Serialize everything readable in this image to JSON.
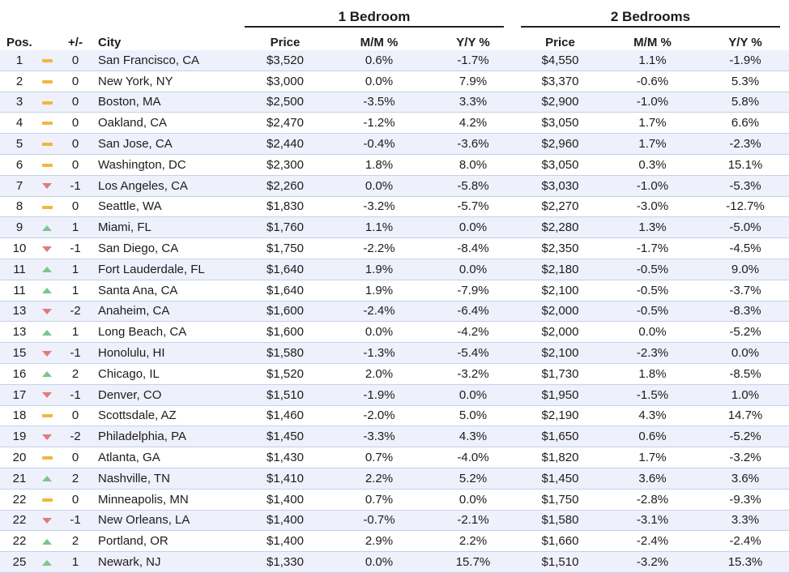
{
  "groups": {
    "one_bedroom": "1 Bedroom",
    "two_bedrooms": "2 Bedrooms"
  },
  "headers": {
    "pos": "Pos.",
    "change": "+/-",
    "city": "City",
    "price": "Price",
    "mm": "M/M %",
    "yy": "Y/Y %"
  },
  "indicator_colors": {
    "up": "#7dc48c",
    "down": "#e27a7a",
    "same": "#f0b73d"
  },
  "rows": [
    {
      "pos": "1",
      "dir": "same",
      "change": "0",
      "city": "San Francisco, CA",
      "p1": "$3,520",
      "mm1": "0.6%",
      "yy1": "-1.7%",
      "p2": "$4,550",
      "mm2": "1.1%",
      "yy2": "-1.9%"
    },
    {
      "pos": "2",
      "dir": "same",
      "change": "0",
      "city": "New York, NY",
      "p1": "$3,000",
      "mm1": "0.0%",
      "yy1": "7.9%",
      "p2": "$3,370",
      "mm2": "-0.6%",
      "yy2": "5.3%"
    },
    {
      "pos": "3",
      "dir": "same",
      "change": "0",
      "city": "Boston, MA",
      "p1": "$2,500",
      "mm1": "-3.5%",
      "yy1": "3.3%",
      "p2": "$2,900",
      "mm2": "-1.0%",
      "yy2": "5.8%"
    },
    {
      "pos": "4",
      "dir": "same",
      "change": "0",
      "city": "Oakland, CA",
      "p1": "$2,470",
      "mm1": "-1.2%",
      "yy1": "4.2%",
      "p2": "$3,050",
      "mm2": "1.7%",
      "yy2": "6.6%"
    },
    {
      "pos": "5",
      "dir": "same",
      "change": "0",
      "city": "San Jose, CA",
      "p1": "$2,440",
      "mm1": "-0.4%",
      "yy1": "-3.6%",
      "p2": "$2,960",
      "mm2": "1.7%",
      "yy2": "-2.3%"
    },
    {
      "pos": "6",
      "dir": "same",
      "change": "0",
      "city": "Washington, DC",
      "p1": "$2,300",
      "mm1": "1.8%",
      "yy1": "8.0%",
      "p2": "$3,050",
      "mm2": "0.3%",
      "yy2": "15.1%"
    },
    {
      "pos": "7",
      "dir": "down",
      "change": "-1",
      "city": "Los Angeles, CA",
      "p1": "$2,260",
      "mm1": "0.0%",
      "yy1": "-5.8%",
      "p2": "$3,030",
      "mm2": "-1.0%",
      "yy2": "-5.3%"
    },
    {
      "pos": "8",
      "dir": "same",
      "change": "0",
      "city": "Seattle, WA",
      "p1": "$1,830",
      "mm1": "-3.2%",
      "yy1": "-5.7%",
      "p2": "$2,270",
      "mm2": "-3.0%",
      "yy2": "-12.7%"
    },
    {
      "pos": "9",
      "dir": "up",
      "change": "1",
      "city": "Miami, FL",
      "p1": "$1,760",
      "mm1": "1.1%",
      "yy1": "0.0%",
      "p2": "$2,280",
      "mm2": "1.3%",
      "yy2": "-5.0%"
    },
    {
      "pos": "10",
      "dir": "down",
      "change": "-1",
      "city": "San Diego, CA",
      "p1": "$1,750",
      "mm1": "-2.2%",
      "yy1": "-8.4%",
      "p2": "$2,350",
      "mm2": "-1.7%",
      "yy2": "-4.5%"
    },
    {
      "pos": "11",
      "dir": "up",
      "change": "1",
      "city": "Fort Lauderdale, FL",
      "p1": "$1,640",
      "mm1": "1.9%",
      "yy1": "0.0%",
      "p2": "$2,180",
      "mm2": "-0.5%",
      "yy2": "9.0%"
    },
    {
      "pos": "11",
      "dir": "up",
      "change": "1",
      "city": "Santa Ana, CA",
      "p1": "$1,640",
      "mm1": "1.9%",
      "yy1": "-7.9%",
      "p2": "$2,100",
      "mm2": "-0.5%",
      "yy2": "-3.7%"
    },
    {
      "pos": "13",
      "dir": "down",
      "change": "-2",
      "city": "Anaheim, CA",
      "p1": "$1,600",
      "mm1": "-2.4%",
      "yy1": "-6.4%",
      "p2": "$2,000",
      "mm2": "-0.5%",
      "yy2": "-8.3%"
    },
    {
      "pos": "13",
      "dir": "up",
      "change": "1",
      "city": "Long Beach, CA",
      "p1": "$1,600",
      "mm1": "0.0%",
      "yy1": "-4.2%",
      "p2": "$2,000",
      "mm2": "0.0%",
      "yy2": "-5.2%"
    },
    {
      "pos": "15",
      "dir": "down",
      "change": "-1",
      "city": "Honolulu, HI",
      "p1": "$1,580",
      "mm1": "-1.3%",
      "yy1": "-5.4%",
      "p2": "$2,100",
      "mm2": "-2.3%",
      "yy2": "0.0%"
    },
    {
      "pos": "16",
      "dir": "up",
      "change": "2",
      "city": "Chicago, IL",
      "p1": "$1,520",
      "mm1": "2.0%",
      "yy1": "-3.2%",
      "p2": "$1,730",
      "mm2": "1.8%",
      "yy2": "-8.5%"
    },
    {
      "pos": "17",
      "dir": "down",
      "change": "-1",
      "city": "Denver, CO",
      "p1": "$1,510",
      "mm1": "-1.9%",
      "yy1": "0.0%",
      "p2": "$1,950",
      "mm2": "-1.5%",
      "yy2": "1.0%"
    },
    {
      "pos": "18",
      "dir": "same",
      "change": "0",
      "city": "Scottsdale, AZ",
      "p1": "$1,460",
      "mm1": "-2.0%",
      "yy1": "5.0%",
      "p2": "$2,190",
      "mm2": "4.3%",
      "yy2": "14.7%"
    },
    {
      "pos": "19",
      "dir": "down",
      "change": "-2",
      "city": "Philadelphia, PA",
      "p1": "$1,450",
      "mm1": "-3.3%",
      "yy1": "4.3%",
      "p2": "$1,650",
      "mm2": "0.6%",
      "yy2": "-5.2%"
    },
    {
      "pos": "20",
      "dir": "same",
      "change": "0",
      "city": "Atlanta, GA",
      "p1": "$1,430",
      "mm1": "0.7%",
      "yy1": "-4.0%",
      "p2": "$1,820",
      "mm2": "1.7%",
      "yy2": "-3.2%"
    },
    {
      "pos": "21",
      "dir": "up",
      "change": "2",
      "city": "Nashville, TN",
      "p1": "$1,410",
      "mm1": "2.2%",
      "yy1": "5.2%",
      "p2": "$1,450",
      "mm2": "3.6%",
      "yy2": "3.6%"
    },
    {
      "pos": "22",
      "dir": "same",
      "change": "0",
      "city": "Minneapolis, MN",
      "p1": "$1,400",
      "mm1": "0.7%",
      "yy1": "0.0%",
      "p2": "$1,750",
      "mm2": "-2.8%",
      "yy2": "-9.3%"
    },
    {
      "pos": "22",
      "dir": "down",
      "change": "-1",
      "city": "New Orleans, LA",
      "p1": "$1,400",
      "mm1": "-0.7%",
      "yy1": "-2.1%",
      "p2": "$1,580",
      "mm2": "-3.1%",
      "yy2": "3.3%"
    },
    {
      "pos": "22",
      "dir": "up",
      "change": "2",
      "city": "Portland, OR",
      "p1": "$1,400",
      "mm1": "2.9%",
      "yy1": "2.2%",
      "p2": "$1,660",
      "mm2": "-2.4%",
      "yy2": "-2.4%"
    },
    {
      "pos": "25",
      "dir": "up",
      "change": "1",
      "city": "Newark, NJ",
      "p1": "$1,330",
      "mm1": "0.0%",
      "yy1": "15.7%",
      "p2": "$1,510",
      "mm2": "-3.2%",
      "yy2": "15.3%"
    }
  ]
}
